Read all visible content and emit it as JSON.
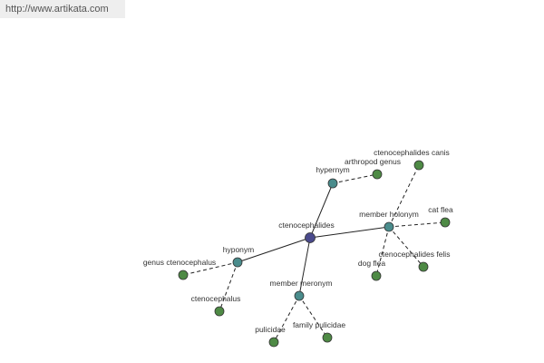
{
  "header": {
    "url": "http://www.artikata.com"
  },
  "nodes": [
    {
      "label": "ctenocephalides"
    },
    {
      "label": "hypernym"
    },
    {
      "label": "arthropod genus"
    },
    {
      "label": "member holonym"
    },
    {
      "label": "ctenocephalides canis"
    },
    {
      "label": "cat flea"
    },
    {
      "label": "ctenocephalides felis"
    },
    {
      "label": "dog flea"
    },
    {
      "label": "hyponym"
    },
    {
      "label": "genus ctenocephalus"
    },
    {
      "label": "ctenocephalus"
    },
    {
      "label": "member meronym"
    },
    {
      "label": "pulicidae"
    },
    {
      "label": "family pulicidae"
    }
  ]
}
